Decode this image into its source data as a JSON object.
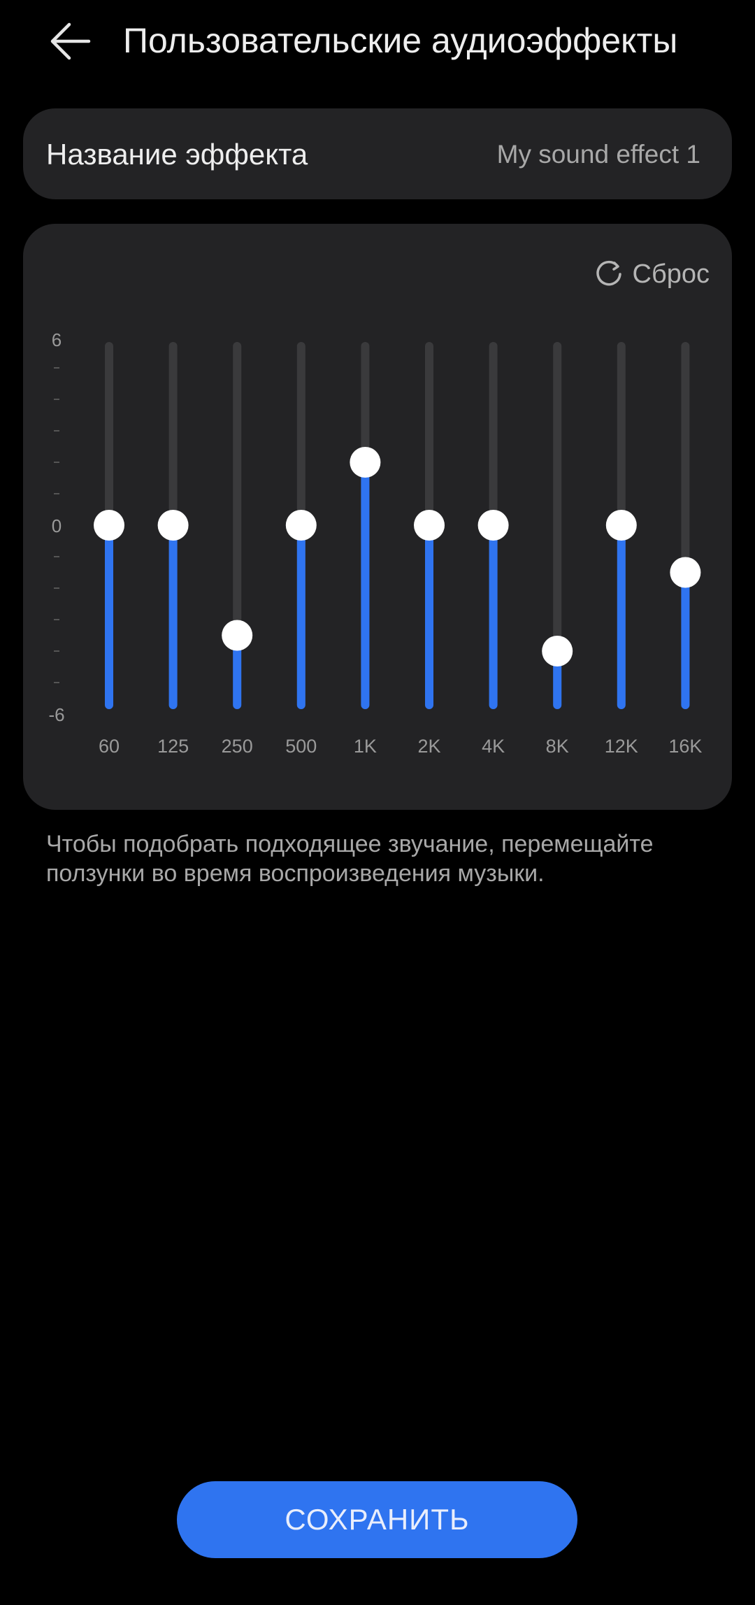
{
  "header": {
    "title": "Пользовательские аудиоэффекты",
    "back_icon": "arrow-left-icon"
  },
  "effect_name": {
    "label": "Название эффекта",
    "value": "My sound effect 1"
  },
  "equalizer": {
    "reset_label": "Сброс",
    "reset_icon": "refresh-icon",
    "scale_top_label": "6",
    "scale_mid_label": "0",
    "scale_bottom_label": "-6",
    "accent_color": "#2f74f0",
    "track_color": "#3a3a3c"
  },
  "chart_data": {
    "type": "bar",
    "categories": [
      "60",
      "125",
      "250",
      "500",
      "1K",
      "2K",
      "4K",
      "8K",
      "12K",
      "16K"
    ],
    "values": [
      0,
      0,
      -3.5,
      0,
      2,
      0,
      0,
      -4,
      0,
      -1.5
    ],
    "ylim": [
      -6,
      6
    ]
  },
  "hint_text": "Чтобы подобрать подходящее звучание, перемещайте ползунки во время воспроизведения музыки.",
  "save_button": {
    "label": "СОХРАНИТЬ"
  }
}
